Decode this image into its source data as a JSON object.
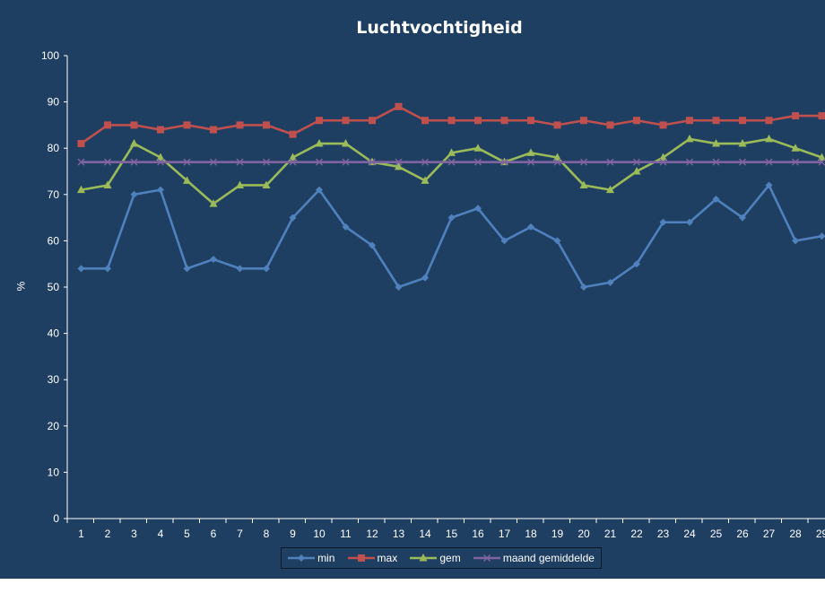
{
  "chart_data": {
    "type": "line",
    "title": "Luchtvochtigheid",
    "xlabel": "",
    "ylabel": "%",
    "ylim": [
      0,
      100
    ],
    "yticks": [
      0,
      10,
      20,
      30,
      40,
      50,
      60,
      70,
      80,
      90,
      100
    ],
    "categories": [
      "1",
      "2",
      "3",
      "4",
      "5",
      "6",
      "7",
      "8",
      "9",
      "10",
      "11",
      "12",
      "13",
      "14",
      "15",
      "16",
      "17",
      "18",
      "19",
      "20",
      "21",
      "22",
      "23",
      "24",
      "25",
      "26",
      "27",
      "28",
      "29"
    ],
    "grid": false,
    "legend_position": "bottom",
    "series": [
      {
        "name": "min",
        "color": "#4f81bd",
        "marker": "diamond",
        "values": [
          54,
          54,
          70,
          71,
          54,
          56,
          54,
          54,
          65,
          71,
          63,
          59,
          50,
          52,
          65,
          67,
          60,
          63,
          60,
          50,
          51,
          55,
          64,
          64,
          69,
          65,
          72,
          60,
          61
        ]
      },
      {
        "name": "max",
        "color": "#c0504d",
        "marker": "square",
        "values": [
          81,
          85,
          85,
          84,
          85,
          84,
          85,
          85,
          83,
          86,
          86,
          86,
          89,
          86,
          86,
          86,
          86,
          86,
          85,
          86,
          85,
          86,
          85,
          86,
          86,
          86,
          86,
          87,
          87
        ]
      },
      {
        "name": "gem",
        "color": "#9bbb59",
        "marker": "triangle",
        "values": [
          71,
          72,
          81,
          78,
          73,
          68,
          72,
          72,
          78,
          81,
          81,
          77,
          76,
          73,
          79,
          80,
          77,
          79,
          78,
          72,
          71,
          75,
          78,
          82,
          81,
          81,
          82,
          80,
          78
        ]
      },
      {
        "name": "maand gemiddelde",
        "color": "#8064a2",
        "marker": "x",
        "values": [
          77,
          77,
          77,
          77,
          77,
          77,
          77,
          77,
          77,
          77,
          77,
          77,
          77,
          77,
          77,
          77,
          77,
          77,
          77,
          77,
          77,
          77,
          77,
          77,
          77,
          77,
          77,
          77,
          77
        ]
      }
    ]
  }
}
